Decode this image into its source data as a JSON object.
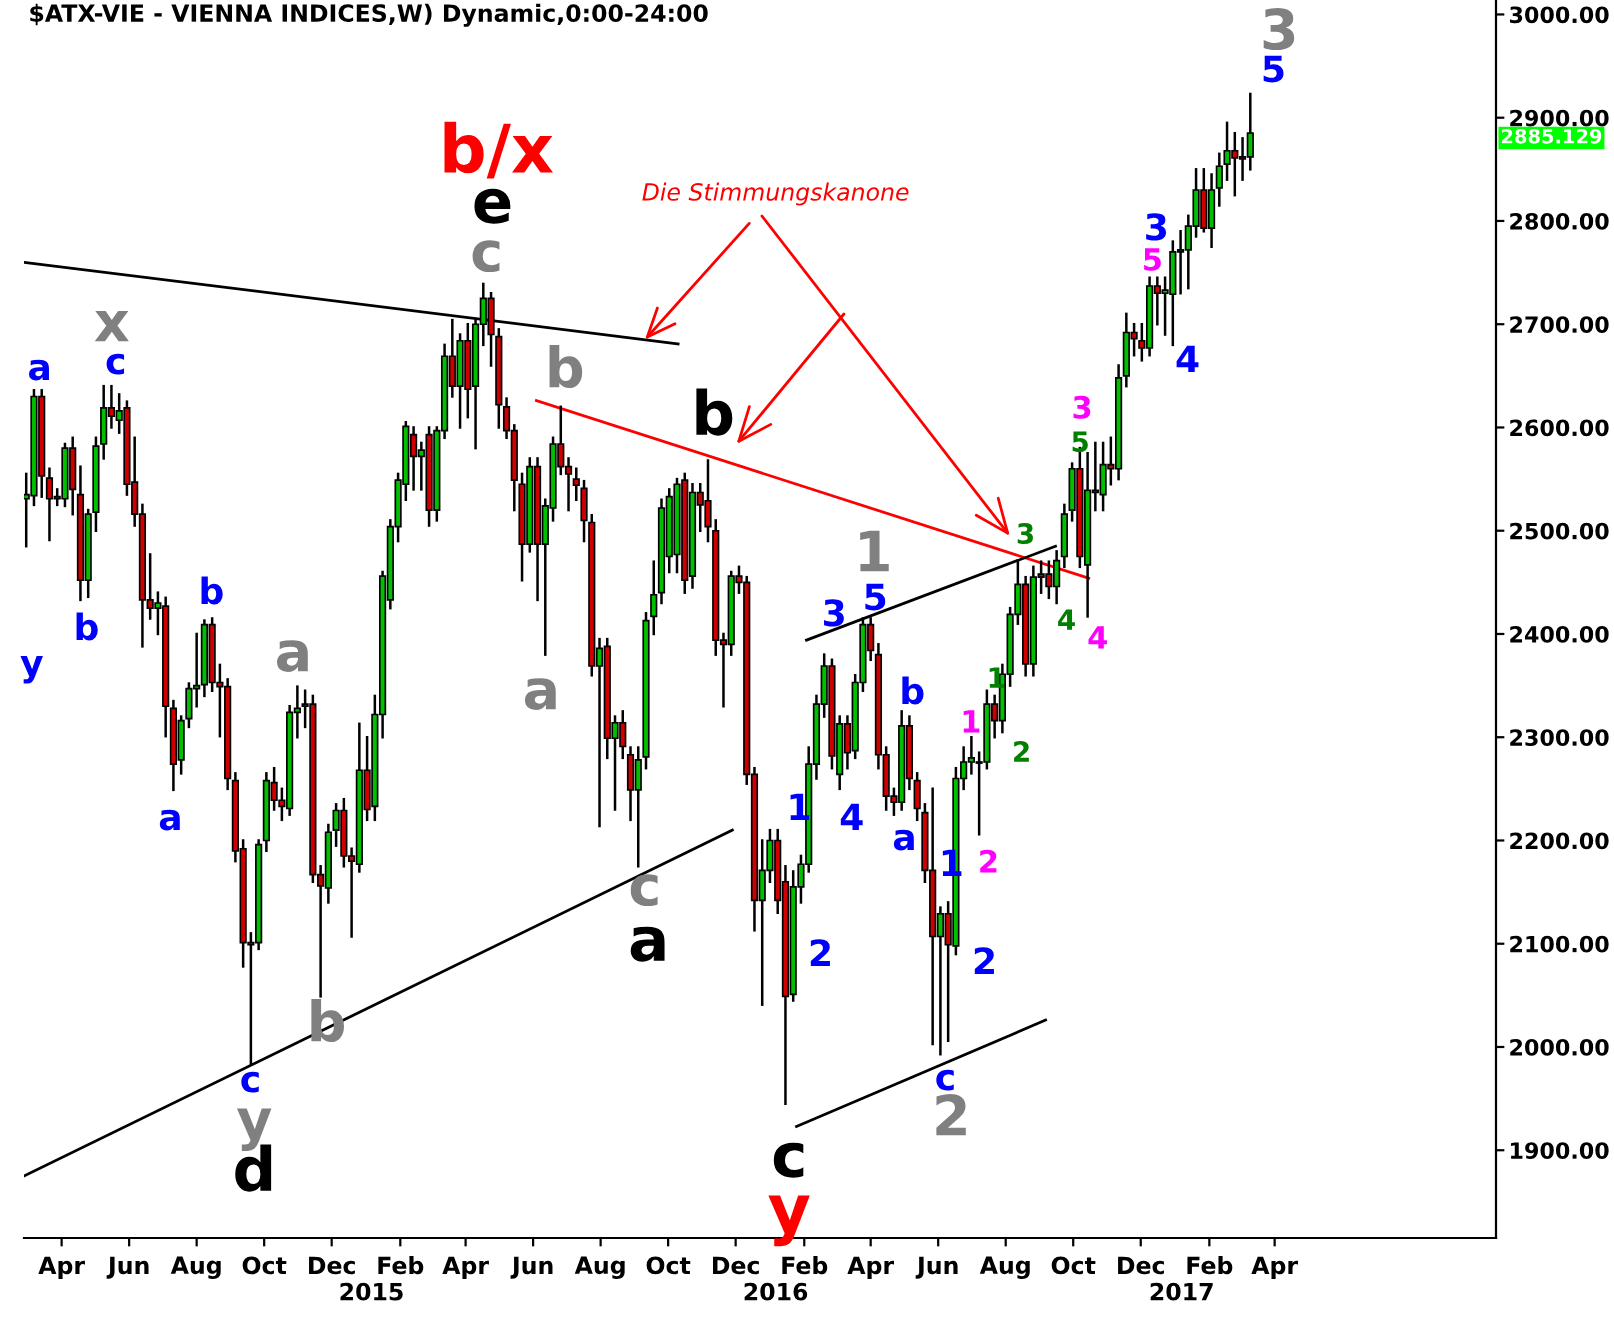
{
  "chart_data": {
    "type": "candlestick",
    "title": "$ATX-VIE - VIENNA INDICES,W) Dynamic,0:00-24:00",
    "x": [
      "2014-02-28",
      "2014-03-07",
      "2014-03-14",
      "2014-03-21",
      "2014-03-28",
      "2014-04-04",
      "2014-04-11",
      "2014-04-18",
      "2014-04-25",
      "2014-05-02",
      "2014-05-09",
      "2014-05-16",
      "2014-05-23",
      "2014-05-30",
      "2014-06-06",
      "2014-06-13",
      "2014-06-20",
      "2014-06-27",
      "2014-07-04",
      "2014-07-11",
      "2014-07-18",
      "2014-07-25",
      "2014-08-01",
      "2014-08-08",
      "2014-08-15",
      "2014-08-22",
      "2014-08-29",
      "2014-09-05",
      "2014-09-12",
      "2014-09-19",
      "2014-09-26",
      "2014-10-03",
      "2014-10-10",
      "2014-10-17",
      "2014-10-24",
      "2014-10-31",
      "2014-11-07",
      "2014-11-14",
      "2014-11-21",
      "2014-11-28",
      "2014-12-05",
      "2014-12-12",
      "2014-12-19",
      "2014-12-26",
      "2015-01-02",
      "2015-01-09",
      "2015-01-16",
      "2015-01-23",
      "2015-01-30",
      "2015-02-06",
      "2015-02-13",
      "2015-02-20",
      "2015-02-27",
      "2015-03-06",
      "2015-03-13",
      "2015-03-20",
      "2015-03-27",
      "2015-04-03",
      "2015-04-10",
      "2015-04-17",
      "2015-04-24",
      "2015-05-01",
      "2015-05-08",
      "2015-05-15",
      "2015-05-22",
      "2015-05-29",
      "2015-06-05",
      "2015-06-12",
      "2015-06-19",
      "2015-06-26",
      "2015-07-03",
      "2015-07-10",
      "2015-07-17",
      "2015-07-24",
      "2015-07-31",
      "2015-08-07",
      "2015-08-14",
      "2015-08-21",
      "2015-08-28",
      "2015-09-04",
      "2015-09-11",
      "2015-09-18",
      "2015-09-25",
      "2015-10-02",
      "2015-10-09",
      "2015-10-16",
      "2015-10-23",
      "2015-10-30",
      "2015-11-06",
      "2015-11-13",
      "2015-11-20",
      "2015-11-27",
      "2015-12-04",
      "2015-12-11",
      "2015-12-18",
      "2015-12-25",
      "2016-01-01",
      "2016-01-08",
      "2016-01-15",
      "2016-01-22",
      "2016-01-29",
      "2016-02-05",
      "2016-02-12",
      "2016-02-19",
      "2016-02-26",
      "2016-03-04",
      "2016-03-11",
      "2016-03-18",
      "2016-03-25",
      "2016-04-01",
      "2016-04-08",
      "2016-04-15",
      "2016-04-22",
      "2016-04-29",
      "2016-05-06",
      "2016-05-13",
      "2016-05-20",
      "2016-05-27",
      "2016-06-03",
      "2016-06-10",
      "2016-06-17",
      "2016-06-24",
      "2016-07-01",
      "2016-07-08",
      "2016-07-15",
      "2016-07-22",
      "2016-07-29",
      "2016-08-05",
      "2016-08-12",
      "2016-08-19",
      "2016-08-26",
      "2016-09-02",
      "2016-09-09",
      "2016-09-16",
      "2016-09-23",
      "2016-09-30",
      "2016-10-07",
      "2016-10-14",
      "2016-10-21",
      "2016-10-28",
      "2016-11-04",
      "2016-11-11",
      "2016-11-18",
      "2016-11-25",
      "2016-12-02",
      "2016-12-09",
      "2016-12-16",
      "2016-12-23",
      "2016-12-30",
      "2017-01-06",
      "2017-01-13",
      "2017-01-20",
      "2017-01-27",
      "2017-02-03",
      "2017-02-10",
      "2017-02-17",
      "2017-02-24",
      "2017-03-03",
      "2017-03-10"
    ],
    "ohlc": [
      [
        2531,
        2555,
        2485,
        2535
      ],
      [
        2534,
        2636,
        2525,
        2630
      ],
      [
        2630,
        2636,
        2533,
        2553
      ],
      [
        2551,
        2560,
        2491,
        2531
      ],
      [
        2533,
        2540,
        2525,
        2531
      ],
      [
        2531,
        2584,
        2524,
        2580
      ],
      [
        2580,
        2590,
        2516,
        2540
      ],
      [
        2535,
        2562,
        2433,
        2452
      ],
      [
        2452,
        2520,
        2436,
        2516
      ],
      [
        2518,
        2590,
        2500,
        2582
      ],
      [
        2584,
        2640,
        2570,
        2619
      ],
      [
        2619,
        2640,
        2600,
        2611
      ],
      [
        2607,
        2632,
        2595,
        2616
      ],
      [
        2619,
        2625,
        2535,
        2545
      ],
      [
        2547,
        2590,
        2505,
        2516
      ],
      [
        2516,
        2525,
        2388,
        2433
      ],
      [
        2433,
        2477,
        2415,
        2425
      ],
      [
        2425,
        2440,
        2400,
        2430
      ],
      [
        2427,
        2435,
        2301,
        2330
      ],
      [
        2328,
        2335,
        2249,
        2274
      ],
      [
        2278,
        2320,
        2265,
        2316
      ],
      [
        2318,
        2352,
        2310,
        2347
      ],
      [
        2347,
        2400,
        2330,
        2350
      ],
      [
        2351,
        2413,
        2340,
        2409
      ],
      [
        2409,
        2415,
        2345,
        2353
      ],
      [
        2353,
        2370,
        2301,
        2349
      ],
      [
        2349,
        2356,
        2250,
        2260
      ],
      [
        2258,
        2265,
        2180,
        2190
      ],
      [
        2192,
        2200,
        2078,
        2101
      ],
      [
        2101,
        2110,
        1983,
        2099
      ],
      [
        2101,
        2200,
        2095,
        2196
      ],
      [
        2200,
        2265,
        2190,
        2258
      ],
      [
        2256,
        2270,
        2230,
        2239
      ],
      [
        2239,
        2250,
        2220,
        2233
      ],
      [
        2231,
        2330,
        2225,
        2324
      ],
      [
        2324,
        2349,
        2300,
        2328
      ],
      [
        2332,
        2345,
        2310,
        2330
      ],
      [
        2332,
        2340,
        2160,
        2167
      ],
      [
        2167,
        2175,
        2049,
        2156
      ],
      [
        2154,
        2215,
        2140,
        2208
      ],
      [
        2210,
        2235,
        2195,
        2229
      ],
      [
        2229,
        2240,
        2175,
        2185
      ],
      [
        2185,
        2192,
        2107,
        2180
      ],
      [
        2177,
        2313,
        2170,
        2268
      ],
      [
        2268,
        2300,
        2220,
        2230
      ],
      [
        2233,
        2340,
        2220,
        2322
      ],
      [
        2322,
        2460,
        2300,
        2456
      ],
      [
        2433,
        2510,
        2425,
        2504
      ],
      [
        2504,
        2555,
        2490,
        2549
      ],
      [
        2545,
        2605,
        2530,
        2601
      ],
      [
        2593,
        2600,
        2540,
        2572
      ],
      [
        2572,
        2585,
        2540,
        2578
      ],
      [
        2593,
        2600,
        2505,
        2520
      ],
      [
        2520,
        2600,
        2510,
        2597
      ],
      [
        2597,
        2680,
        2590,
        2669
      ],
      [
        2669,
        2704,
        2630,
        2640
      ],
      [
        2640,
        2690,
        2600,
        2684
      ],
      [
        2684,
        2700,
        2610,
        2637
      ],
      [
        2640,
        2705,
        2580,
        2700
      ],
      [
        2700,
        2739,
        2680,
        2725
      ],
      [
        2725,
        2730,
        2660,
        2690
      ],
      [
        2688,
        2695,
        2600,
        2622
      ],
      [
        2620,
        2628,
        2590,
        2597
      ],
      [
        2597,
        2602,
        2520,
        2549
      ],
      [
        2545,
        2555,
        2452,
        2487
      ],
      [
        2487,
        2570,
        2480,
        2562
      ],
      [
        2562,
        2570,
        2433,
        2487
      ],
      [
        2487,
        2530,
        2380,
        2524
      ],
      [
        2522,
        2590,
        2510,
        2584
      ],
      [
        2584,
        2620,
        2555,
        2562
      ],
      [
        2562,
        2570,
        2520,
        2555
      ],
      [
        2550,
        2560,
        2530,
        2544
      ],
      [
        2541,
        2548,
        2490,
        2510
      ],
      [
        2508,
        2515,
        2360,
        2369
      ],
      [
        2369,
        2395,
        2214,
        2386
      ],
      [
        2388,
        2395,
        2280,
        2299
      ],
      [
        2299,
        2320,
        2230,
        2314
      ],
      [
        2314,
        2325,
        2280,
        2291
      ],
      [
        2283,
        2290,
        2220,
        2249
      ],
      [
        2249,
        2290,
        2175,
        2278
      ],
      [
        2281,
        2420,
        2270,
        2413
      ],
      [
        2417,
        2470,
        2400,
        2438
      ],
      [
        2440,
        2530,
        2430,
        2522
      ],
      [
        2475,
        2540,
        2460,
        2533
      ],
      [
        2477,
        2550,
        2460,
        2545
      ],
      [
        2549,
        2555,
        2440,
        2452
      ],
      [
        2456,
        2545,
        2445,
        2537
      ],
      [
        2537,
        2545,
        2500,
        2525
      ],
      [
        2529,
        2568,
        2490,
        2504
      ],
      [
        2500,
        2510,
        2380,
        2394
      ],
      [
        2394,
        2400,
        2330,
        2390
      ],
      [
        2390,
        2460,
        2380,
        2456
      ],
      [
        2456,
        2465,
        2440,
        2450
      ],
      [
        2450,
        2455,
        2255,
        2264
      ],
      [
        2264,
        2270,
        2113,
        2142
      ],
      [
        2142,
        2200,
        2041,
        2171
      ],
      [
        2171,
        2210,
        2160,
        2200
      ],
      [
        2200,
        2210,
        2130,
        2142
      ],
      [
        2160,
        2175,
        1945,
        2049
      ],
      [
        2051,
        2170,
        2045,
        2155
      ],
      [
        2155,
        2185,
        2140,
        2177
      ],
      [
        2177,
        2290,
        2170,
        2274
      ],
      [
        2274,
        2340,
        2260,
        2332
      ],
      [
        2332,
        2380,
        2320,
        2369
      ],
      [
        2369,
        2375,
        2270,
        2282
      ],
      [
        2264,
        2320,
        2250,
        2313
      ],
      [
        2313,
        2320,
        2270,
        2285
      ],
      [
        2287,
        2360,
        2280,
        2353
      ],
      [
        2353,
        2415,
        2345,
        2409
      ],
      [
        2409,
        2415,
        2375,
        2384
      ],
      [
        2380,
        2390,
        2270,
        2283
      ],
      [
        2283,
        2290,
        2230,
        2243
      ],
      [
        2243,
        2250,
        2225,
        2237
      ],
      [
        2237,
        2325,
        2230,
        2311
      ],
      [
        2311,
        2320,
        2250,
        2260
      ],
      [
        2258,
        2265,
        2220,
        2231
      ],
      [
        2227,
        2235,
        2160,
        2171
      ],
      [
        2171,
        2250,
        2003,
        2107
      ],
      [
        2107,
        2135,
        1993,
        2129
      ],
      [
        2129,
        2140,
        2006,
        2099
      ],
      [
        2098,
        2270,
        2090,
        2260
      ],
      [
        2260,
        2290,
        2250,
        2276
      ],
      [
        2276,
        2300,
        2265,
        2280
      ],
      [
        2275,
        2285,
        2206,
        2276
      ],
      [
        2276,
        2345,
        2270,
        2332
      ],
      [
        2332,
        2340,
        2300,
        2316
      ],
      [
        2316,
        2370,
        2305,
        2361
      ],
      [
        2361,
        2425,
        2350,
        2419
      ],
      [
        2419,
        2471,
        2410,
        2448
      ],
      [
        2448,
        2455,
        2360,
        2371
      ],
      [
        2371,
        2465,
        2360,
        2455
      ],
      [
        2458,
        2470,
        2440,
        2455
      ],
      [
        2458,
        2470,
        2435,
        2446
      ],
      [
        2446,
        2480,
        2430,
        2471
      ],
      [
        2475,
        2525,
        2465,
        2516
      ],
      [
        2520,
        2565,
        2510,
        2560
      ],
      [
        2560,
        2580,
        2465,
        2475
      ],
      [
        2467,
        2575,
        2417,
        2539
      ],
      [
        2539,
        2585,
        2520,
        2537
      ],
      [
        2535,
        2585,
        2520,
        2564
      ],
      [
        2564,
        2590,
        2545,
        2560
      ],
      [
        2560,
        2660,
        2550,
        2648
      ],
      [
        2650,
        2710,
        2640,
        2692
      ],
      [
        2692,
        2700,
        2670,
        2686
      ],
      [
        2684,
        2700,
        2665,
        2677
      ],
      [
        2677,
        2745,
        2670,
        2737
      ],
      [
        2737,
        2745,
        2700,
        2730
      ],
      [
        2730,
        2745,
        2690,
        2733
      ],
      [
        2729,
        2780,
        2680,
        2770
      ],
      [
        2770,
        2790,
        2730,
        2772
      ],
      [
        2772,
        2805,
        2735,
        2795
      ],
      [
        2795,
        2850,
        2785,
        2830
      ],
      [
        2830,
        2850,
        2790,
        2793
      ],
      [
        2793,
        2845,
        2775,
        2830
      ],
      [
        2832,
        2865,
        2815,
        2853
      ],
      [
        2855,
        2895,
        2840,
        2868
      ],
      [
        2868,
        2885,
        2825,
        2861
      ],
      [
        2862,
        2880,
        2840,
        2860
      ],
      [
        2862,
        2923,
        2850,
        2885.13
      ]
    ],
    "colors": [
      "#00c000",
      "#00c000",
      "#d00000",
      "#d00000",
      "#d00000",
      "#00c000",
      "#d00000",
      "#d00000",
      "#00c000",
      "#00c000",
      "#00c000",
      "#d00000",
      "#00c000",
      "#d00000",
      "#d00000",
      "#d00000",
      "#d00000",
      "#00c000",
      "#d00000",
      "#d00000",
      "#00c000",
      "#00c000",
      "#00c000",
      "#00c000",
      "#d00000",
      "#d00000",
      "#d00000",
      "#d00000",
      "#d00000",
      "#d00000",
      "#00c000",
      "#00c000",
      "#d00000",
      "#d00000",
      "#00c000",
      "#00c000",
      "#d00000",
      "#d00000",
      "#d00000",
      "#00c000",
      "#00c000",
      "#d00000",
      "#d00000",
      "#00c000",
      "#d00000",
      "#00c000",
      "#00c000",
      "#00c000",
      "#00c000",
      "#00c000",
      "#d00000",
      "#00c000",
      "#d00000",
      "#00c000",
      "#00c000",
      "#d00000",
      "#00c000",
      "#d00000",
      "#00c000",
      "#00c000",
      "#d00000",
      "#d00000",
      "#d00000",
      "#d00000",
      "#d00000",
      "#00c000",
      "#d00000",
      "#00c000",
      "#00c000",
      "#d00000",
      "#d00000",
      "#d00000",
      "#d00000",
      "#d00000",
      "#00c000",
      "#d00000",
      "#00c000",
      "#d00000",
      "#d00000",
      "#00c000",
      "#00c000",
      "#00c000",
      "#00c000",
      "#00c000",
      "#00c000",
      "#d00000",
      "#00c000",
      "#d00000",
      "#d00000",
      "#d00000",
      "#d00000",
      "#00c000",
      "#d00000",
      "#d00000",
      "#d00000",
      "#00c000",
      "#00c000",
      "#d00000",
      "#d00000",
      "#00c000",
      "#00c000",
      "#00c000",
      "#00c000",
      "#00c000",
      "#d00000",
      "#00c000",
      "#d00000",
      "#00c000",
      "#00c000",
      "#d00000",
      "#d00000",
      "#d00000",
      "#d00000",
      "#00c000",
      "#d00000",
      "#d00000",
      "#d00000",
      "#d00000",
      "#00c000",
      "#d00000",
      "#00c000",
      "#00c000",
      "#00c000",
      "#00c000",
      "#00c000",
      "#d00000",
      "#00c000",
      "#00c000",
      "#00c000",
      "#d00000",
      "#00c000",
      "#d00000",
      "#d00000",
      "#00c000",
      "#00c000",
      "#00c000",
      "#d00000",
      "#00c000",
      "#d00000",
      "#00c000",
      "#d00000",
      "#00c000",
      "#00c000",
      "#d00000",
      "#d00000",
      "#00c000",
      "#d00000",
      "#00c000",
      "#00c000",
      "#00c000",
      "#00c000",
      "#00c000",
      "#d00000",
      "#00c000",
      "#00c000",
      "#00c000",
      "#d00000",
      "#d00000",
      "#00c000"
    ],
    "series": [
      {
        "type": "line",
        "color": "#000000",
        "x": [
          "2014-02-26",
          "2015-10-10"
        ],
        "values": [
          2760,
          2681
        ]
      },
      {
        "type": "line",
        "color": "#000000",
        "x": [
          "2014-02-26",
          "2015-11-28"
        ],
        "values": [
          1875,
          2210
        ]
      },
      {
        "type": "line",
        "color": "#ff0000",
        "x": [
          "2015-06-04",
          "2016-10-15"
        ],
        "values": [
          2626,
          2454
        ]
      },
      {
        "type": "line",
        "color": "#000000",
        "x": [
          "2016-02-03",
          "2016-09-15"
        ],
        "values": [
          2394,
          2485
        ]
      },
      {
        "type": "line",
        "color": "#000000",
        "x": [
          "2016-01-25",
          "2016-09-06"
        ],
        "values": [
          1923,
          2026
        ]
      }
    ],
    "xlim": [
      "2014-02-26",
      "2017-10-18"
    ],
    "xticks": [
      {
        "value": "2014-04-01",
        "label": "Apr"
      },
      {
        "value": "2014-06-01",
        "label": "Jun"
      },
      {
        "value": "2014-08-01",
        "label": "Aug"
      },
      {
        "value": "2014-10-01",
        "label": "Oct"
      },
      {
        "value": "2014-12-01",
        "label": "Dec"
      },
      {
        "value": "2015-02-01",
        "label": "Feb"
      },
      {
        "value": "2015-04-01",
        "label": "Apr"
      },
      {
        "value": "2015-06-01",
        "label": "Jun"
      },
      {
        "value": "2015-08-01",
        "label": "Aug"
      },
      {
        "value": "2015-10-01",
        "label": "Oct"
      },
      {
        "value": "2015-12-01",
        "label": "Dec"
      },
      {
        "value": "2016-02-01",
        "label": "Feb"
      },
      {
        "value": "2016-04-01",
        "label": "Apr"
      },
      {
        "value": "2016-06-01",
        "label": "Jun"
      },
      {
        "value": "2016-08-01",
        "label": "Aug"
      },
      {
        "value": "2016-10-01",
        "label": "Oct"
      },
      {
        "value": "2016-12-01",
        "label": "Dec"
      },
      {
        "value": "2017-02-01",
        "label": "Feb"
      },
      {
        "value": "2017-04-01",
        "label": "Apr"
      }
    ],
    "ylim": [
      1815,
      3014
    ],
    "yticks": [
      {
        "value": 1900,
        "label": "1900.00"
      },
      {
        "value": 2000,
        "label": "2000.00"
      },
      {
        "value": 2100,
        "label": "2100.00"
      },
      {
        "value": 2200,
        "label": "2200.00"
      },
      {
        "value": 2300,
        "label": "2300.00"
      },
      {
        "value": 2400,
        "label": "2400.00"
      },
      {
        "value": 2500,
        "label": "2500.00"
      },
      {
        "value": 2600,
        "label": "2600.00"
      },
      {
        "value": 2700,
        "label": "2700.00"
      },
      {
        "value": 2800,
        "label": "2800.00"
      },
      {
        "value": 2900,
        "label": "2900.00"
      },
      {
        "value": 3000,
        "label": "3000.00"
      }
    ],
    "annotations": [
      {
        "text": "Die Stimmungskanone",
        "x": "2015-09-10",
        "y": 2685
      },
      "2885.129",
      "2015",
      "2016",
      "2017",
      "a",
      "x",
      "c",
      "b",
      "y",
      "b",
      "a",
      "a",
      "c",
      "y",
      "d",
      "b",
      "b/x",
      "e",
      "c",
      "b",
      "a",
      "b",
      "c",
      "a",
      "c",
      "y",
      "1",
      "3",
      "5",
      "1",
      "4",
      "2",
      "b",
      "a",
      "1",
      "2",
      "c",
      "2",
      "1",
      "2",
      "1",
      "2",
      "3",
      "4",
      "4",
      "5",
      "3",
      "3",
      "5",
      "4",
      "3",
      "5"
    ],
    "grid": false,
    "legend": false
  }
}
